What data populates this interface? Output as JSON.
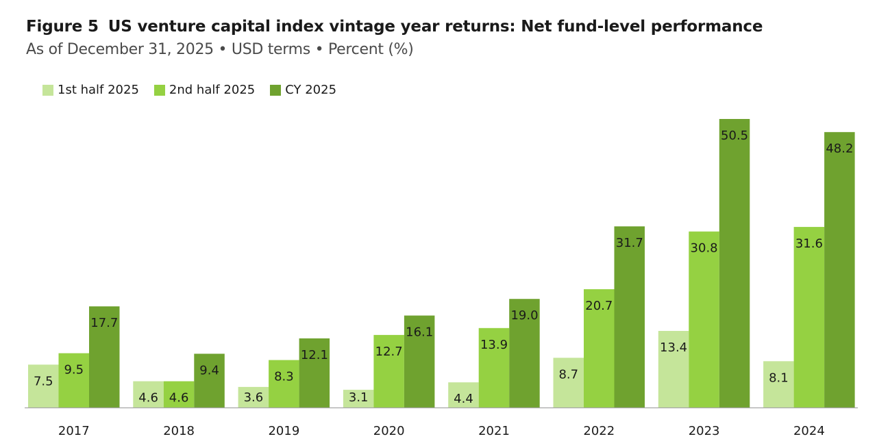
{
  "figure_number": "Figure 5",
  "title": "US venture capital index vintage year returns: Net fund-level performance",
  "subtitle": "As of December 31, 2025 • USD terms • Percent (%)",
  "legend": [
    {
      "label": "1st half 2025",
      "color": "#c5e59a"
    },
    {
      "label": "2nd half 2025",
      "color": "#95d142"
    },
    {
      "label": "CY 2025",
      "color": "#6fa22f"
    }
  ],
  "chart_data": {
    "type": "bar",
    "categories": [
      "2017",
      "2018",
      "2019",
      "2020",
      "2021",
      "2022",
      "2023",
      "2024"
    ],
    "series": [
      {
        "name": "1st half 2025",
        "color": "#c5e59a",
        "values": [
          7.5,
          4.6,
          3.6,
          3.1,
          4.4,
          8.7,
          13.4,
          8.1
        ]
      },
      {
        "name": "2nd half 2025",
        "color": "#95d142",
        "values": [
          9.5,
          4.6,
          8.3,
          12.7,
          13.9,
          20.7,
          30.8,
          31.6
        ]
      },
      {
        "name": "CY 2025",
        "color": "#6fa22f",
        "values": [
          17.7,
          9.4,
          12.1,
          16.1,
          19.0,
          31.7,
          50.5,
          48.2
        ]
      }
    ],
    "ylim": [
      0,
      50.5
    ],
    "grid": false,
    "legend_position": "top-left",
    "data_labels": true
  }
}
